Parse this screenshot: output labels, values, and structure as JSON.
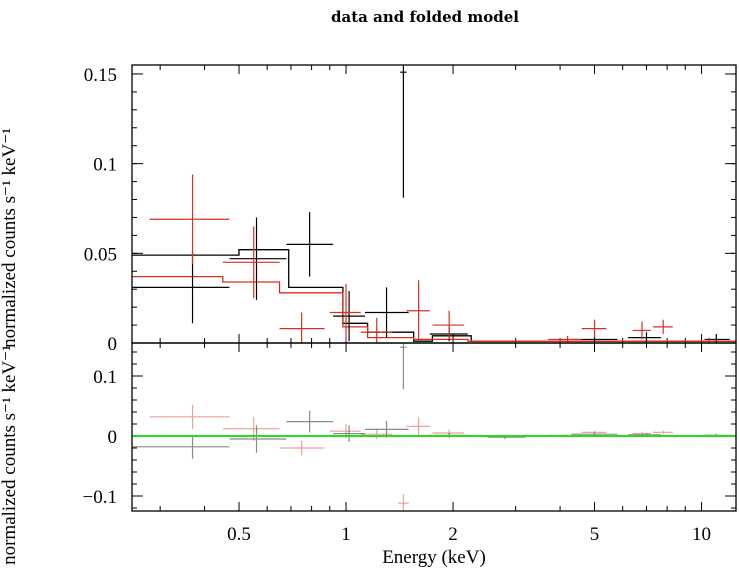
{
  "chart_data": {
    "type": "scatter",
    "title": "data and folded model",
    "xlabel": "Energy (keV)",
    "ylabel_top": "normalized counts s⁻¹ keV⁻¹",
    "ylabel_bottom": "normalized counts s⁻¹ keV⁻¹",
    "x_scale": "log",
    "xlim": [
      0.25,
      12.5
    ],
    "x_ticks": [
      {
        "value": 0.5,
        "label": "0.5"
      },
      {
        "value": 1,
        "label": "1"
      },
      {
        "value": 2,
        "label": "2"
      },
      {
        "value": 5,
        "label": "5"
      },
      {
        "value": 10,
        "label": "10"
      }
    ],
    "top_panel": {
      "ylim": [
        0,
        0.155
      ],
      "y_ticks": [
        {
          "value": 0,
          "label": "0"
        },
        {
          "value": 0.05,
          "label": "0.05"
        },
        {
          "value": 0.1,
          "label": "0.1"
        },
        {
          "value": 0.15,
          "label": "0.15"
        }
      ]
    },
    "bottom_panel": {
      "ylim": [
        -0.125,
        0.155
      ],
      "y_ticks": [
        {
          "value": -0.1,
          "label": "−0.1"
        },
        {
          "value": 0,
          "label": "0"
        },
        {
          "value": 0.1,
          "label": "0.1"
        }
      ]
    },
    "series": [
      {
        "color": "#000000",
        "data": [
          {
            "x": 0.37,
            "xlo": 0.25,
            "xhi": 0.47,
            "y": 0.031,
            "yerr": 0.02
          },
          {
            "x": 0.56,
            "xlo": 0.47,
            "xhi": 0.68,
            "y": 0.047,
            "yerr": 0.023
          },
          {
            "x": 0.79,
            "xlo": 0.68,
            "xhi": 0.92,
            "y": 0.055,
            "yerr": 0.018
          },
          {
            "x": 1.02,
            "xlo": 0.92,
            "xhi": 1.13,
            "y": 0.015,
            "yerr": 0.014
          },
          {
            "x": 1.3,
            "xlo": 1.13,
            "xhi": 1.5,
            "y": 0.017,
            "yerr": 0.014
          },
          {
            "x": 1.45,
            "xlo": 1.42,
            "xhi": 1.48,
            "y": 0.151,
            "yerr": 0.07
          },
          {
            "x": 1.95,
            "xlo": 1.72,
            "xhi": 2.2,
            "y": 0.005,
            "yerr": 0.004
          },
          {
            "x": 5.0,
            "xlo": 4.3,
            "xhi": 5.8,
            "y": 0.002,
            "yerr": 0.002
          },
          {
            "x": 7.0,
            "xlo": 6.2,
            "xhi": 7.7,
            "y": 0.003,
            "yerr": 0.003
          },
          {
            "x": 11.0,
            "xlo": 10.2,
            "xhi": 12.0,
            "y": 0.002,
            "yerr": 0.003
          }
        ],
        "model": [
          [
            0.25,
            0.049
          ],
          [
            0.5,
            0.049
          ],
          [
            0.5,
            0.052
          ],
          [
            0.69,
            0.052
          ],
          [
            0.69,
            0.031
          ],
          [
            0.98,
            0.031
          ],
          [
            0.98,
            0.011
          ],
          [
            1.15,
            0.011
          ],
          [
            1.15,
            0.006
          ],
          [
            1.55,
            0.006
          ],
          [
            1.55,
            0.001
          ],
          [
            1.75,
            0.001
          ],
          [
            1.75,
            0.004
          ],
          [
            2.25,
            0.004
          ],
          [
            2.25,
            0.001
          ],
          [
            12.5,
            0.001
          ]
        ],
        "residuals": [
          {
            "x": 0.37,
            "xlo": 0.25,
            "xhi": 0.47,
            "y": -0.018,
            "yerr": 0.02
          },
          {
            "x": 0.56,
            "xlo": 0.47,
            "xhi": 0.68,
            "y": -0.005,
            "yerr": 0.023
          },
          {
            "x": 0.79,
            "xlo": 0.68,
            "xhi": 0.92,
            "y": 0.024,
            "yerr": 0.018
          },
          {
            "x": 1.02,
            "xlo": 0.92,
            "xhi": 1.13,
            "y": 0.004,
            "yerr": 0.014
          },
          {
            "x": 1.3,
            "xlo": 1.13,
            "xhi": 1.5,
            "y": 0.011,
            "yerr": 0.014
          },
          {
            "x": 1.45,
            "xlo": 1.42,
            "xhi": 1.48,
            "y": 0.148,
            "yerr": 0.07
          },
          {
            "x": 1.95,
            "xlo": 1.72,
            "xhi": 2.2,
            "y": 0.001,
            "yerr": 0.004
          },
          {
            "x": 2.8,
            "xlo": 2.5,
            "xhi": 3.2,
            "y": -0.002,
            "yerr": 0.003
          },
          {
            "x": 5.0,
            "xlo": 4.3,
            "xhi": 5.8,
            "y": 0.003,
            "yerr": 0.003
          },
          {
            "x": 7.0,
            "xlo": 6.2,
            "xhi": 7.7,
            "y": 0.002,
            "yerr": 0.003
          },
          {
            "x": 11.0,
            "xlo": 10.2,
            "xhi": 12.0,
            "y": 0.001,
            "yerr": 0.003
          }
        ]
      },
      {
        "color": "#d7301f",
        "data": [
          {
            "x": 0.37,
            "xlo": 0.28,
            "xhi": 0.47,
            "y": 0.069,
            "yerr": 0.025
          },
          {
            "x": 0.55,
            "xlo": 0.45,
            "xhi": 0.65,
            "y": 0.045,
            "yerr": 0.02
          },
          {
            "x": 0.75,
            "xlo": 0.65,
            "xhi": 0.87,
            "y": 0.008,
            "yerr": 0.009
          },
          {
            "x": 1.0,
            "xlo": 0.9,
            "xhi": 1.1,
            "y": 0.017,
            "yerr": 0.016
          },
          {
            "x": 1.22,
            "xlo": 1.1,
            "xhi": 1.35,
            "y": 0.006,
            "yerr": 0.008
          },
          {
            "x": 1.6,
            "xlo": 1.48,
            "xhi": 1.72,
            "y": 0.018,
            "yerr": 0.017
          },
          {
            "x": 1.95,
            "xlo": 1.75,
            "xhi": 2.15,
            "y": 0.01,
            "yerr": 0.008
          },
          {
            "x": 4.2,
            "xlo": 3.7,
            "xhi": 4.6,
            "y": 0.002,
            "yerr": 0.002
          },
          {
            "x": 5.0,
            "xlo": 4.6,
            "xhi": 5.4,
            "y": 0.008,
            "yerr": 0.005
          },
          {
            "x": 6.8,
            "xlo": 6.4,
            "xhi": 7.2,
            "y": 0.007,
            "yerr": 0.005
          },
          {
            "x": 7.8,
            "xlo": 7.3,
            "xhi": 8.3,
            "y": 0.009,
            "yerr": 0.004
          },
          {
            "x": 10.5,
            "xlo": 10.0,
            "xhi": 11.0,
            "y": 0.001,
            "yerr": 0.002
          }
        ],
        "model": [
          [
            0.25,
            0.037
          ],
          [
            0.45,
            0.037
          ],
          [
            0.45,
            0.034
          ],
          [
            0.65,
            0.034
          ],
          [
            0.65,
            0.028
          ],
          [
            0.98,
            0.028
          ],
          [
            0.98,
            0.009
          ],
          [
            1.15,
            0.009
          ],
          [
            1.15,
            0.003
          ],
          [
            1.55,
            0.003
          ],
          [
            1.55,
            0.002
          ],
          [
            2.2,
            0.002
          ],
          [
            2.2,
            0.001
          ],
          [
            12.5,
            0.001
          ]
        ],
        "residuals": [
          {
            "x": 0.37,
            "xlo": 0.28,
            "xhi": 0.47,
            "y": 0.032,
            "yerr": 0.02
          },
          {
            "x": 0.55,
            "xlo": 0.45,
            "xhi": 0.65,
            "y": 0.012,
            "yerr": 0.02
          },
          {
            "x": 0.75,
            "xlo": 0.65,
            "xhi": 0.87,
            "y": -0.02,
            "yerr": 0.012
          },
          {
            "x": 1.0,
            "xlo": 0.9,
            "xhi": 1.1,
            "y": 0.008,
            "yerr": 0.012
          },
          {
            "x": 1.22,
            "xlo": 1.1,
            "xhi": 1.35,
            "y": 0.003,
            "yerr": 0.008
          },
          {
            "x": 1.45,
            "xlo": 1.4,
            "xhi": 1.5,
            "y": -0.112,
            "yerr": 0.015
          },
          {
            "x": 1.6,
            "xlo": 1.48,
            "xhi": 1.72,
            "y": 0.016,
            "yerr": 0.015
          },
          {
            "x": 1.95,
            "xlo": 1.75,
            "xhi": 2.15,
            "y": 0.005,
            "yerr": 0.006
          },
          {
            "x": 4.2,
            "xlo": 3.7,
            "xhi": 4.6,
            "y": 0.001,
            "yerr": 0.002
          },
          {
            "x": 5.0,
            "xlo": 4.6,
            "xhi": 5.4,
            "y": 0.006,
            "yerr": 0.003
          },
          {
            "x": 6.8,
            "xlo": 6.4,
            "xhi": 7.2,
            "y": 0.004,
            "yerr": 0.003
          },
          {
            "x": 7.8,
            "xlo": 7.3,
            "xhi": 8.3,
            "y": 0.006,
            "yerr": 0.003
          },
          {
            "x": 10.5,
            "xlo": 10.0,
            "xhi": 11.0,
            "y": 0.001,
            "yerr": 0.002
          }
        ]
      }
    ],
    "reference_line": {
      "y": 0,
      "color": "#22dd22"
    }
  }
}
